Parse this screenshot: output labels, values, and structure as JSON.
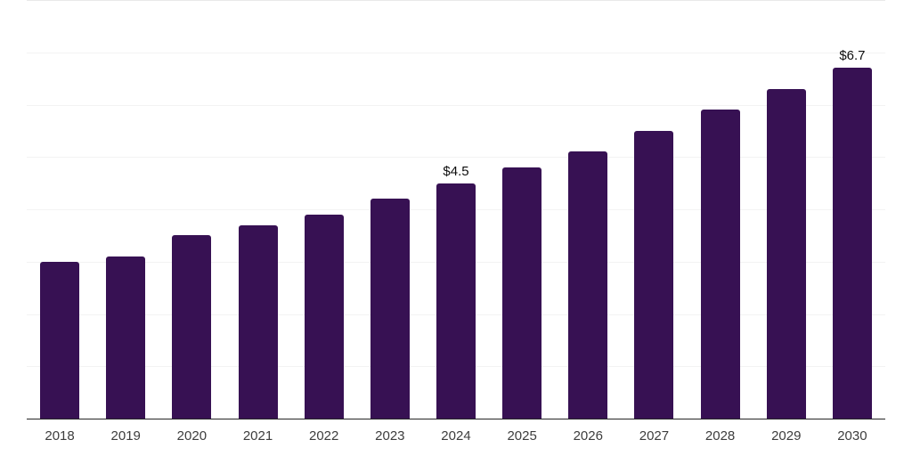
{
  "chart_data": {
    "type": "bar",
    "title": "",
    "xlabel": "",
    "ylabel": "",
    "categories": [
      "2018",
      "2019",
      "2020",
      "2021",
      "2022",
      "2023",
      "2024",
      "2025",
      "2026",
      "2027",
      "2028",
      "2029",
      "2030"
    ],
    "values": [
      3.0,
      3.1,
      3.5,
      3.7,
      3.9,
      4.2,
      4.5,
      4.8,
      5.1,
      5.5,
      5.9,
      6.3,
      6.7
    ],
    "point_labels": [
      "",
      "",
      "",
      "",
      "",
      "",
      "$4.5",
      "",
      "",
      "",
      "",
      "",
      "$6.7"
    ],
    "ylim": [
      0,
      8
    ],
    "gridline_step": 1,
    "grid": "horizontal-only",
    "legend": "none",
    "y_axis_ticks_visible": false,
    "colors": {
      "bar": "#371153",
      "axis_line": "#262626",
      "gridline": "#f3f3f3",
      "top_gridline": "#e9e9e9",
      "point_label_text": "#0d0d0d",
      "tick_label_text": "#3d3d3d",
      "background": "#ffffff"
    }
  }
}
